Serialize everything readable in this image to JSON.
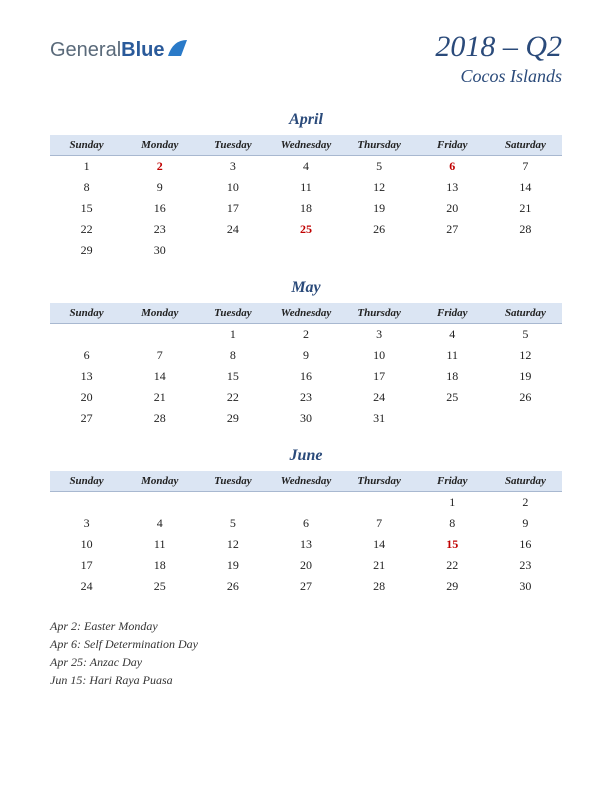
{
  "logo": {
    "text_general": "General",
    "text_blue": "Blue"
  },
  "title": {
    "period": "2018 – Q2",
    "location": "Cocos Islands"
  },
  "colors": {
    "header_bg": "#dbe5f3",
    "header_border": "#a8b8d0",
    "title_color": "#2a4a7a",
    "holiday_color": "#c00000",
    "text_color": "#222222",
    "logo_general": "#5a6a7a",
    "logo_blue": "#2a5a9a"
  },
  "day_headers": [
    "Sunday",
    "Monday",
    "Tuesday",
    "Wednesday",
    "Thursday",
    "Friday",
    "Saturday"
  ],
  "months": [
    {
      "name": "April",
      "weeks": [
        [
          {
            "d": "1"
          },
          {
            "d": "2",
            "h": true
          },
          {
            "d": "3"
          },
          {
            "d": "4"
          },
          {
            "d": "5"
          },
          {
            "d": "6",
            "h": true
          },
          {
            "d": "7"
          }
        ],
        [
          {
            "d": "8"
          },
          {
            "d": "9"
          },
          {
            "d": "10"
          },
          {
            "d": "11"
          },
          {
            "d": "12"
          },
          {
            "d": "13"
          },
          {
            "d": "14"
          }
        ],
        [
          {
            "d": "15"
          },
          {
            "d": "16"
          },
          {
            "d": "17"
          },
          {
            "d": "18"
          },
          {
            "d": "19"
          },
          {
            "d": "20"
          },
          {
            "d": "21"
          }
        ],
        [
          {
            "d": "22"
          },
          {
            "d": "23"
          },
          {
            "d": "24"
          },
          {
            "d": "25",
            "h": true
          },
          {
            "d": "26"
          },
          {
            "d": "27"
          },
          {
            "d": "28"
          }
        ],
        [
          {
            "d": "29"
          },
          {
            "d": "30"
          },
          {
            "d": ""
          },
          {
            "d": ""
          },
          {
            "d": ""
          },
          {
            "d": ""
          },
          {
            "d": ""
          }
        ]
      ]
    },
    {
      "name": "May",
      "weeks": [
        [
          {
            "d": ""
          },
          {
            "d": ""
          },
          {
            "d": "1"
          },
          {
            "d": "2"
          },
          {
            "d": "3"
          },
          {
            "d": "4"
          },
          {
            "d": "5"
          }
        ],
        [
          {
            "d": "6"
          },
          {
            "d": "7"
          },
          {
            "d": "8"
          },
          {
            "d": "9"
          },
          {
            "d": "10"
          },
          {
            "d": "11"
          },
          {
            "d": "12"
          }
        ],
        [
          {
            "d": "13"
          },
          {
            "d": "14"
          },
          {
            "d": "15"
          },
          {
            "d": "16"
          },
          {
            "d": "17"
          },
          {
            "d": "18"
          },
          {
            "d": "19"
          }
        ],
        [
          {
            "d": "20"
          },
          {
            "d": "21"
          },
          {
            "d": "22"
          },
          {
            "d": "23"
          },
          {
            "d": "24"
          },
          {
            "d": "25"
          },
          {
            "d": "26"
          }
        ],
        [
          {
            "d": "27"
          },
          {
            "d": "28"
          },
          {
            "d": "29"
          },
          {
            "d": "30"
          },
          {
            "d": "31"
          },
          {
            "d": ""
          },
          {
            "d": ""
          }
        ]
      ]
    },
    {
      "name": "June",
      "weeks": [
        [
          {
            "d": ""
          },
          {
            "d": ""
          },
          {
            "d": ""
          },
          {
            "d": ""
          },
          {
            "d": ""
          },
          {
            "d": "1"
          },
          {
            "d": "2"
          }
        ],
        [
          {
            "d": "3"
          },
          {
            "d": "4"
          },
          {
            "d": "5"
          },
          {
            "d": "6"
          },
          {
            "d": "7"
          },
          {
            "d": "8"
          },
          {
            "d": "9"
          }
        ],
        [
          {
            "d": "10"
          },
          {
            "d": "11"
          },
          {
            "d": "12"
          },
          {
            "d": "13"
          },
          {
            "d": "14"
          },
          {
            "d": "15",
            "h": true
          },
          {
            "d": "16"
          }
        ],
        [
          {
            "d": "17"
          },
          {
            "d": "18"
          },
          {
            "d": "19"
          },
          {
            "d": "20"
          },
          {
            "d": "21"
          },
          {
            "d": "22"
          },
          {
            "d": "23"
          }
        ],
        [
          {
            "d": "24"
          },
          {
            "d": "25"
          },
          {
            "d": "26"
          },
          {
            "d": "27"
          },
          {
            "d": "28"
          },
          {
            "d": "29"
          },
          {
            "d": "30"
          }
        ]
      ]
    }
  ],
  "holidays_list": [
    "Apr 2: Easter Monday",
    "Apr 6: Self Determination Day",
    "Apr 25: Anzac Day",
    "Jun 15: Hari Raya Puasa"
  ]
}
